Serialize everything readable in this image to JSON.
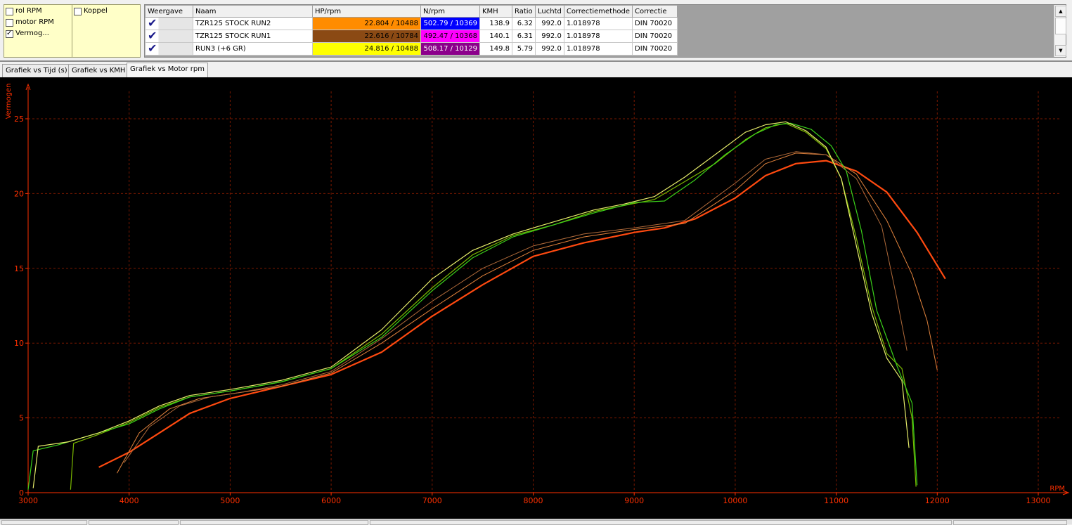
{
  "options": {
    "left": [
      {
        "label": "rol RPM",
        "checked": false
      },
      {
        "label": "motor RPM",
        "checked": false
      },
      {
        "label": "Vermog...",
        "checked": true
      }
    ],
    "right": [
      {
        "label": "Koppel",
        "checked": false
      }
    ]
  },
  "table": {
    "headers": [
      "Weergave",
      "Naam",
      "HP/rpm",
      "N/rpm",
      "KMH",
      "Ratio",
      "Luchtd",
      "Correctiemethode",
      "Correctie"
    ],
    "rows": [
      {
        "naam": "TZR125 STOCK RUN2",
        "hp": "22.804 / 10488",
        "hp_color": "#ff8c00",
        "n": "502.79 / 10369",
        "n_color": "#0000ff",
        "kmh": "138.9",
        "ratio": "6.32",
        "luchtd": "992.0",
        "methode": "1.018978",
        "correctie": "DIN 70020"
      },
      {
        "naam": "TZR125 STOCK RUN1",
        "hp": "22.616 / 10784",
        "hp_color": "#8b4a14",
        "n": "492.47 / 10368",
        "n_color": "#ff00ff",
        "kmh": "140.1",
        "ratio": "6.31",
        "luchtd": "992.0",
        "methode": "1.018978",
        "correctie": "DIN 70020"
      },
      {
        "naam": "RUN3 (+6 GR)",
        "hp": "24.816 / 10488",
        "hp_color": "#ffff00",
        "n": "508.17 / 10129",
        "n_color": "#8b008b",
        "kmh": "149.8",
        "ratio": "5.79",
        "luchtd": "992.0",
        "methode": "1.018978",
        "correctie": "DIN 70020"
      }
    ]
  },
  "tabs": [
    "Grafiek vs Tijd (s)",
    "Grafiek vs KMH",
    "Grafiek vs Motor rpm"
  ],
  "active_tab": 2,
  "chart_data": {
    "type": "line",
    "ylabel": "Vermogen",
    "xlabel": "RPM",
    "xlim": [
      3000,
      13000
    ],
    "ylim": [
      0,
      25
    ],
    "x_ticks": [
      3000,
      4000,
      5000,
      6000,
      7000,
      8000,
      9000,
      10000,
      11000,
      12000,
      13000
    ],
    "y_ticks": [
      0,
      5,
      10,
      15,
      20,
      25
    ],
    "grid": true,
    "background": "#000000",
    "axis_color": "#ff3000",
    "series": [
      {
        "color": "#ff4a10",
        "width": 2.2,
        "x": [
          3700,
          4000,
          4300,
          4600,
          5000,
          5500,
          6000,
          6500,
          7000,
          7500,
          8000,
          8500,
          9000,
          9300,
          9600,
          10000,
          10300,
          10600,
          10900,
          11200,
          11500,
          11800,
          12080
        ],
        "y": [
          1.7,
          2.7,
          4.0,
          5.3,
          6.3,
          7.1,
          7.9,
          9.4,
          11.8,
          13.9,
          15.8,
          16.7,
          17.4,
          17.7,
          18.3,
          19.7,
          21.2,
          22.0,
          22.2,
          21.5,
          20.1,
          17.4,
          14.3
        ]
      },
      {
        "color": "#e0823c",
        "width": 1,
        "x": [
          3880,
          4100,
          4400,
          4700,
          5000,
          5500,
          6000,
          6500,
          7000,
          7500,
          8000,
          8500,
          9000,
          9500,
          10000,
          10300,
          10600,
          10900,
          11200,
          11500,
          11750,
          11900,
          12000
        ],
        "y": [
          1.3,
          4.0,
          5.6,
          6.3,
          6.6,
          7.1,
          8.0,
          10.0,
          12.3,
          14.5,
          16.2,
          17.1,
          17.6,
          18.0,
          20.2,
          22.0,
          22.7,
          22.6,
          21.3,
          18.2,
          14.6,
          11.5,
          8.2
        ]
      },
      {
        "color": "#b06a3a",
        "width": 1,
        "x": [
          3950,
          4200,
          4500,
          4800,
          5100,
          5500,
          6000,
          6500,
          7000,
          7500,
          8000,
          8500,
          9000,
          9500,
          10000,
          10300,
          10600,
          10900,
          11200,
          11450,
          11600,
          11700
        ],
        "y": [
          2.0,
          4.4,
          5.8,
          6.4,
          6.7,
          7.2,
          8.1,
          10.3,
          12.8,
          15.0,
          16.5,
          17.3,
          17.7,
          18.2,
          20.7,
          22.3,
          22.8,
          22.6,
          21.0,
          17.8,
          13.0,
          9.5
        ]
      },
      {
        "color": "#7ab800",
        "width": 1.2,
        "x": [
          3420,
          3450,
          3700,
          4000,
          4300,
          4600,
          5000,
          5500,
          6000,
          6500,
          7000,
          7400,
          7800,
          8200,
          8600,
          8900,
          9200,
          9500,
          9800,
          10100,
          10300,
          10500,
          10700,
          10900,
          11050,
          11200,
          11350,
          11500,
          11650,
          11750,
          11790
        ],
        "y": [
          0.2,
          3.3,
          3.9,
          4.7,
          5.7,
          6.4,
          6.8,
          7.4,
          8.3,
          10.6,
          13.7,
          15.9,
          17.2,
          17.9,
          18.8,
          19.2,
          19.6,
          20.8,
          22.0,
          23.6,
          24.4,
          24.7,
          24.1,
          23.0,
          21.0,
          17.0,
          12.5,
          9.3,
          8.3,
          5.0,
          0.4
        ]
      },
      {
        "color": "#3ad21a",
        "width": 1.2,
        "x": [
          3000,
          3050,
          3300,
          3600,
          4000,
          4300,
          4600,
          5000,
          5500,
          6000,
          6500,
          7000,
          7400,
          7800,
          8200,
          8600,
          9000,
          9300,
          9600,
          9900,
          10200,
          10400,
          10550,
          10750,
          10950,
          11100,
          11250,
          11400,
          11600,
          11750,
          11800
        ],
        "y": [
          0.2,
          2.8,
          3.2,
          3.8,
          4.6,
          5.6,
          6.4,
          6.8,
          7.4,
          8.3,
          10.4,
          13.5,
          15.7,
          17.1,
          17.9,
          18.7,
          19.4,
          19.5,
          20.9,
          22.6,
          24.0,
          24.6,
          24.7,
          24.3,
          23.2,
          21.5,
          17.5,
          12.2,
          8.5,
          6.0,
          0.5
        ]
      },
      {
        "color": "#e6ec6a",
        "width": 1.2,
        "x": [
          3050,
          3100,
          3400,
          3700,
          4000,
          4300,
          4600,
          5000,
          5500,
          6000,
          6500,
          7000,
          7400,
          7800,
          8200,
          8600,
          8900,
          9200,
          9500,
          9800,
          10100,
          10300,
          10500,
          10700,
          10900,
          11050,
          11200,
          11350,
          11500,
          11650,
          11720
        ],
        "y": [
          0.3,
          3.1,
          3.4,
          4.0,
          4.8,
          5.8,
          6.5,
          6.9,
          7.5,
          8.4,
          10.9,
          14.3,
          16.2,
          17.3,
          18.1,
          18.9,
          19.3,
          19.8,
          21.1,
          22.6,
          24.1,
          24.6,
          24.8,
          24.2,
          23.1,
          21.0,
          16.5,
          12.0,
          9.0,
          7.5,
          3.0
        ]
      }
    ]
  },
  "status": {
    "panes": 5
  }
}
